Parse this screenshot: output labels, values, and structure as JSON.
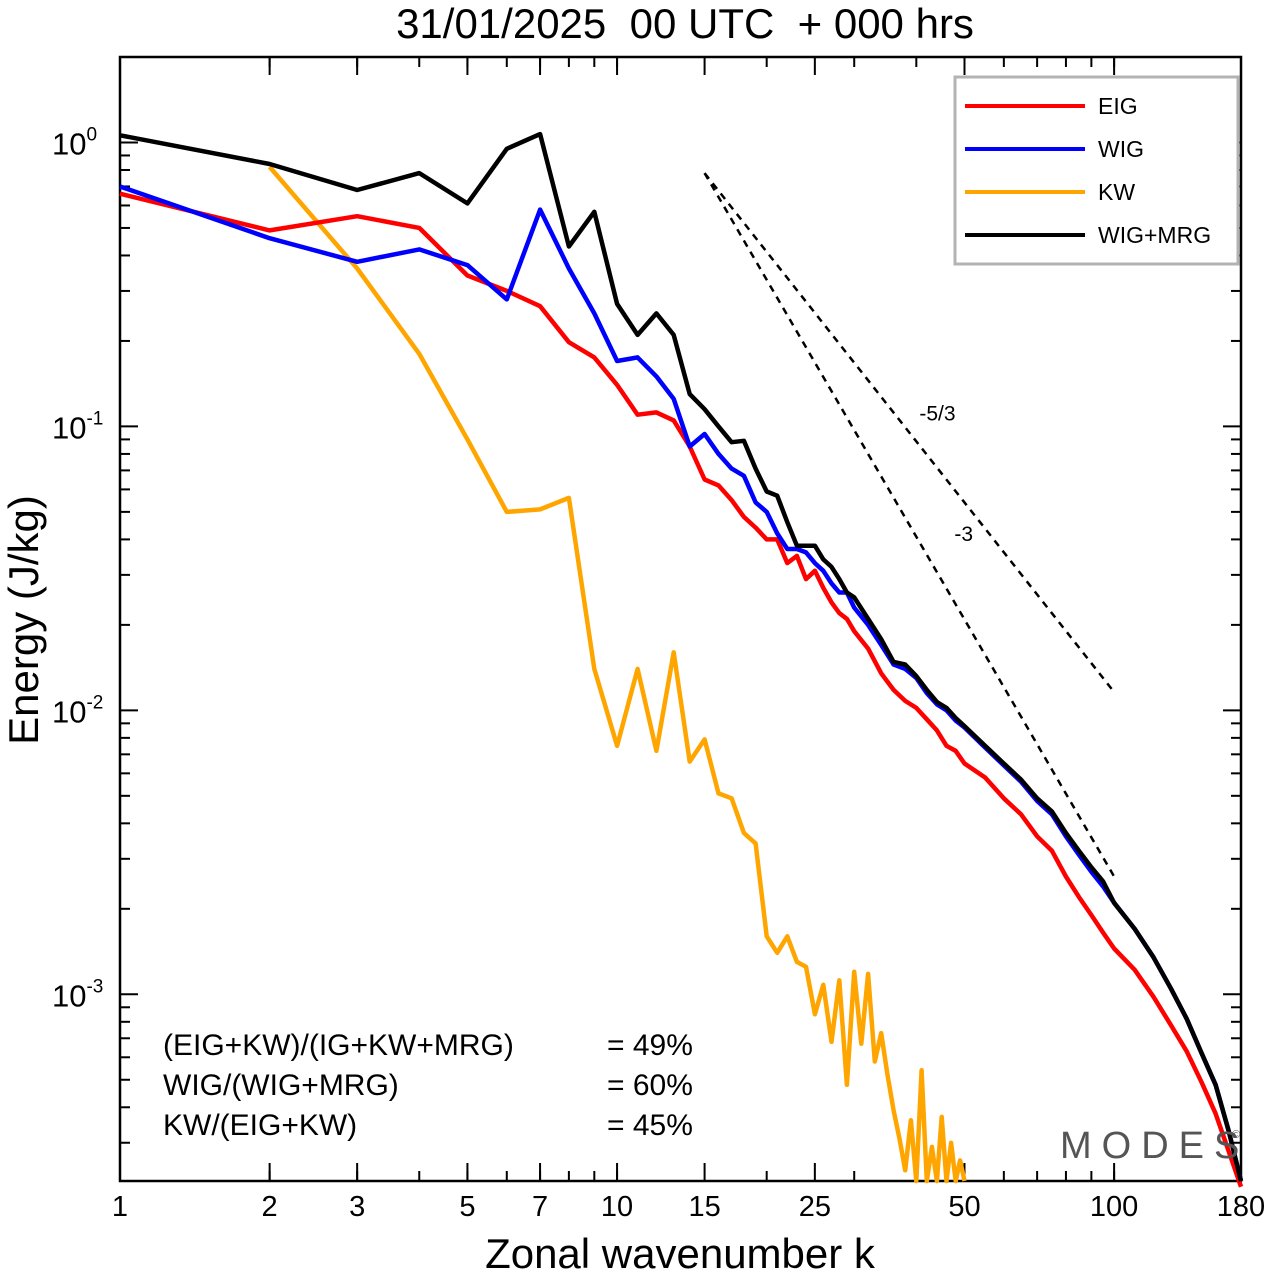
{
  "chart_data": {
    "type": "line",
    "title": "31/01/2025  00 UTC  + 000 hrs",
    "xlabel": "Zonal wavenumber k",
    "ylabel": "Energy (J/kg)",
    "xscale": "log",
    "yscale": "log",
    "xlim": [
      1,
      180
    ],
    "ylim": [
      0.00022,
      2.0
    ],
    "x_ticks": [
      1,
      2,
      3,
      5,
      7,
      10,
      15,
      25,
      50,
      100,
      180
    ],
    "x_tick_labels": [
      "1",
      "2",
      "3",
      "5",
      "7",
      "10",
      "15",
      "25",
      "50",
      "100",
      "180"
    ],
    "y_ticks": [
      {
        "base": "10",
        "exp": "0",
        "value": 1
      },
      {
        "base": "10",
        "exp": "-1",
        "value": 0.1
      },
      {
        "base": "10",
        "exp": "-2",
        "value": 0.01
      },
      {
        "base": "10",
        "exp": "-3",
        "value": 0.001
      }
    ],
    "grid": false,
    "legend_position": "top-right",
    "series": [
      {
        "name": "EIG",
        "color": "#ff0000",
        "points": [
          [
            1,
            0.66
          ],
          [
            2,
            0.49
          ],
          [
            3,
            0.55
          ],
          [
            4,
            0.5
          ],
          [
            5,
            0.34
          ],
          [
            6,
            0.3
          ],
          [
            7,
            0.265
          ],
          [
            8,
            0.198
          ],
          [
            9,
            0.175
          ],
          [
            10,
            0.14
          ],
          [
            11,
            0.11
          ],
          [
            12,
            0.112
          ],
          [
            13,
            0.105
          ],
          [
            14,
            0.085
          ],
          [
            15,
            0.065
          ],
          [
            16,
            0.062
          ],
          [
            17,
            0.055
          ],
          [
            18,
            0.048
          ],
          [
            19,
            0.044
          ],
          [
            20,
            0.04
          ],
          [
            21,
            0.04
          ],
          [
            22,
            0.033
          ],
          [
            23,
            0.035
          ],
          [
            24,
            0.029
          ],
          [
            25,
            0.031
          ],
          [
            26,
            0.027
          ],
          [
            27,
            0.024
          ],
          [
            28,
            0.022
          ],
          [
            29,
            0.021
          ],
          [
            30,
            0.019
          ],
          [
            32,
            0.0165
          ],
          [
            34,
            0.0135
          ],
          [
            36,
            0.0118
          ],
          [
            38,
            0.0108
          ],
          [
            40,
            0.0102
          ],
          [
            42,
            0.0093
          ],
          [
            44,
            0.0085
          ],
          [
            46,
            0.0075
          ],
          [
            48,
            0.0072
          ],
          [
            50,
            0.0065
          ],
          [
            55,
            0.0058
          ],
          [
            60,
            0.0049
          ],
          [
            65,
            0.0043
          ],
          [
            70,
            0.0036
          ],
          [
            75,
            0.0032
          ],
          [
            80,
            0.0026
          ],
          [
            85,
            0.0022
          ],
          [
            90,
            0.0019
          ],
          [
            95,
            0.00165
          ],
          [
            100,
            0.00145
          ],
          [
            110,
            0.00122
          ],
          [
            120,
            0.00098
          ],
          [
            130,
            0.00078
          ],
          [
            140,
            0.00063
          ],
          [
            150,
            0.00049
          ],
          [
            160,
            0.00038
          ],
          [
            170,
            0.00028
          ],
          [
            180,
            0.00021
          ]
        ]
      },
      {
        "name": "WIG",
        "color": "#0000ff",
        "points": [
          [
            1,
            0.7
          ],
          [
            2,
            0.46
          ],
          [
            3,
            0.38
          ],
          [
            4,
            0.42
          ],
          [
            5,
            0.37
          ],
          [
            6,
            0.28
          ],
          [
            7,
            0.58
          ],
          [
            8,
            0.36
          ],
          [
            9,
            0.25
          ],
          [
            10,
            0.17
          ],
          [
            11,
            0.175
          ],
          [
            12,
            0.15
          ],
          [
            13,
            0.125
          ],
          [
            14,
            0.085
          ],
          [
            15,
            0.094
          ],
          [
            16,
            0.08
          ],
          [
            17,
            0.071
          ],
          [
            18,
            0.067
          ],
          [
            19,
            0.054
          ],
          [
            20,
            0.05
          ],
          [
            21,
            0.042
          ],
          [
            22,
            0.037
          ],
          [
            23,
            0.037
          ],
          [
            24,
            0.036
          ],
          [
            25,
            0.033
          ],
          [
            26,
            0.031
          ],
          [
            27,
            0.028
          ],
          [
            28,
            0.026
          ],
          [
            29,
            0.026
          ],
          [
            30,
            0.023
          ],
          [
            32,
            0.02
          ],
          [
            34,
            0.017
          ],
          [
            36,
            0.0145
          ],
          [
            38,
            0.014
          ],
          [
            40,
            0.013
          ],
          [
            42,
            0.0115
          ],
          [
            44,
            0.0105
          ],
          [
            46,
            0.01
          ],
          [
            48,
            0.0092
          ],
          [
            50,
            0.0087
          ],
          [
            55,
            0.0074
          ],
          [
            60,
            0.0064
          ],
          [
            65,
            0.0056
          ],
          [
            70,
            0.0048
          ],
          [
            75,
            0.0043
          ],
          [
            80,
            0.0036
          ],
          [
            85,
            0.0031
          ],
          [
            90,
            0.0027
          ],
          [
            95,
            0.0024
          ],
          [
            100,
            0.0021
          ],
          [
            110,
            0.0017
          ],
          [
            120,
            0.00135
          ],
          [
            130,
            0.00105
          ],
          [
            140,
            0.00082
          ],
          [
            150,
            0.00062
          ],
          [
            160,
            0.00048
          ],
          [
            170,
            0.00033
          ],
          [
            180,
            0.00022
          ]
        ]
      },
      {
        "name": "KW",
        "color": "#ffa500",
        "points": [
          [
            2,
            0.82
          ],
          [
            3,
            0.36
          ],
          [
            4,
            0.18
          ],
          [
            5,
            0.09
          ],
          [
            6,
            0.05
          ],
          [
            7,
            0.051
          ],
          [
            8,
            0.056
          ],
          [
            9,
            0.014
          ],
          [
            10,
            0.0075
          ],
          [
            11,
            0.014
          ],
          [
            12,
            0.0072
          ],
          [
            13,
            0.016
          ],
          [
            14,
            0.0066
          ],
          [
            15,
            0.0079
          ],
          [
            16,
            0.0051
          ],
          [
            17,
            0.0049
          ],
          [
            18,
            0.0037
          ],
          [
            19,
            0.0034
          ],
          [
            20,
            0.0016
          ],
          [
            21,
            0.0014
          ],
          [
            22,
            0.0016
          ],
          [
            23,
            0.0013
          ],
          [
            24,
            0.00125
          ],
          [
            25,
            0.00085
          ],
          [
            26,
            0.00108
          ],
          [
            27,
            0.00068
          ],
          [
            28,
            0.00112
          ],
          [
            29,
            0.00048
          ],
          [
            30,
            0.0012
          ],
          [
            31,
            0.00067
          ],
          [
            32,
            0.00118
          ],
          [
            33,
            0.00058
          ],
          [
            34,
            0.00073
          ],
          [
            35,
            0.00052
          ],
          [
            36,
            0.00039
          ],
          [
            37,
            0.00031
          ],
          [
            38,
            0.00024
          ],
          [
            39,
            0.00036
          ],
          [
            40,
            0.00022
          ],
          [
            41,
            0.00054
          ],
          [
            42,
            0.00022
          ],
          [
            43,
            0.00029
          ],
          [
            44,
            0.00022
          ],
          [
            45,
            0.00037
          ],
          [
            46,
            0.00022
          ],
          [
            47,
            0.0003
          ],
          [
            48,
            0.00022
          ],
          [
            49,
            0.00026
          ],
          [
            50,
            0.00022
          ]
        ]
      },
      {
        "name": "WIG+MRG",
        "color": "#000000",
        "points": [
          [
            1,
            1.06
          ],
          [
            2,
            0.84
          ],
          [
            3,
            0.68
          ],
          [
            4,
            0.78
          ],
          [
            5,
            0.61
          ],
          [
            6,
            0.95
          ],
          [
            7,
            1.07
          ],
          [
            8,
            0.43
          ],
          [
            9,
            0.57
          ],
          [
            10,
            0.27
          ],
          [
            11,
            0.21
          ],
          [
            12,
            0.25
          ],
          [
            13,
            0.21
          ],
          [
            14,
            0.13
          ],
          [
            15,
            0.115
          ],
          [
            16,
            0.1
          ],
          [
            17,
            0.088
          ],
          [
            18,
            0.089
          ],
          [
            19,
            0.071
          ],
          [
            20,
            0.059
          ],
          [
            21,
            0.057
          ],
          [
            22,
            0.046
          ],
          [
            23,
            0.038
          ],
          [
            24,
            0.038
          ],
          [
            25,
            0.038
          ],
          [
            26,
            0.034
          ],
          [
            27,
            0.032
          ],
          [
            28,
            0.029
          ],
          [
            29,
            0.026
          ],
          [
            30,
            0.025
          ],
          [
            32,
            0.021
          ],
          [
            34,
            0.0178
          ],
          [
            36,
            0.0148
          ],
          [
            38,
            0.0145
          ],
          [
            40,
            0.0132
          ],
          [
            42,
            0.0118
          ],
          [
            44,
            0.0107
          ],
          [
            46,
            0.0102
          ],
          [
            48,
            0.0094
          ],
          [
            50,
            0.0088
          ],
          [
            55,
            0.0075
          ],
          [
            60,
            0.0065
          ],
          [
            65,
            0.0057
          ],
          [
            70,
            0.0049
          ],
          [
            75,
            0.0044
          ],
          [
            80,
            0.0037
          ],
          [
            85,
            0.0032
          ],
          [
            90,
            0.0028
          ],
          [
            95,
            0.0025
          ],
          [
            100,
            0.0021
          ],
          [
            110,
            0.0017
          ],
          [
            120,
            0.00135
          ],
          [
            130,
            0.00105
          ],
          [
            140,
            0.00082
          ],
          [
            150,
            0.00062
          ],
          [
            160,
            0.00048
          ],
          [
            170,
            0.00033
          ],
          [
            180,
            0.00022
          ]
        ]
      }
    ],
    "reference_lines": [
      {
        "label": "-5/3",
        "slope": -1.6667,
        "from": [
          15,
          0.78
        ],
        "to": [
          100,
          0.0116
        ]
      },
      {
        "label": "-3",
        "slope": -3,
        "from": [
          15,
          0.78
        ],
        "to": [
          100,
          0.0026
        ]
      }
    ],
    "annotations": [
      {
        "name": "(EIG+KW)/(IG+KW+MRG)",
        "value": "= 49%"
      },
      {
        "name": "WIG/(WIG+MRG)",
        "value": "= 60%"
      },
      {
        "name": "KW/(EIG+KW)",
        "value": "= 45%"
      }
    ]
  },
  "watermark": "MODES",
  "watermark_mark": "©"
}
